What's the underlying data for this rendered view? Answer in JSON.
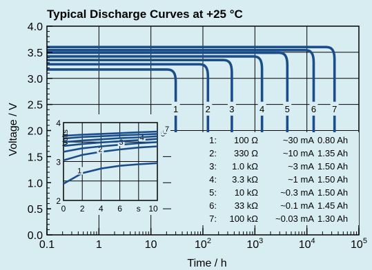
{
  "chart_data": {
    "type": "line",
    "title": "Typical Discharge Curves at +25 °C",
    "xlabel": "Time / h",
    "ylabel": "Voltage / V",
    "x_scale": "log",
    "xlim": [
      0.1,
      100000
    ],
    "ylim": [
      0.0,
      4.0
    ],
    "x_ticks": [
      {
        "v": 0.1,
        "label": "0.1"
      },
      {
        "v": 1,
        "label": "1"
      },
      {
        "v": 10,
        "label": "10"
      },
      {
        "v": 100,
        "label": "10",
        "sup": "2"
      },
      {
        "v": 1000,
        "label": "10",
        "sup": "3"
      },
      {
        "v": 10000,
        "label": "10",
        "sup": "4"
      },
      {
        "v": 100000,
        "label": "10",
        "sup": "5"
      }
    ],
    "y_ticks": [
      "0.0",
      "0.5",
      "1.0",
      "1.5",
      "2.0",
      "2.5",
      "3.0",
      "3.5",
      "4.0"
    ],
    "grid": true,
    "series": [
      {
        "name": "1",
        "plateau": 3.17,
        "end_hours": 30
      },
      {
        "name": "2",
        "plateau": 3.27,
        "end_hours": 125
      },
      {
        "name": "3",
        "plateau": 3.35,
        "end_hours": 360
      },
      {
        "name": "4",
        "plateau": 3.42,
        "end_hours": 1370
      },
      {
        "name": "5",
        "plateau": 3.49,
        "end_hours": 4200
      },
      {
        "name": "6",
        "plateau": 3.54,
        "end_hours": 13500
      },
      {
        "name": "7",
        "plateau": 3.6,
        "end_hours": 34000
      }
    ],
    "legend": [
      {
        "n": "1:",
        "r": "100 Ω",
        "i": "~30 mA",
        "c": "0.80 Ah"
      },
      {
        "n": "2:",
        "r": "330 Ω",
        "i": "~10 mA",
        "c": "1.35 Ah"
      },
      {
        "n": "3:",
        "r": "1.0 kΩ",
        "i": "~3 mA",
        "c": "1.50 Ah"
      },
      {
        "n": "4:",
        "r": "3.3 kΩ",
        "i": "~1 mA",
        "c": "1.50 Ah"
      },
      {
        "n": "5:",
        "r": "10 kΩ",
        "i": "~0.3 mA",
        "c": "1.50 Ah"
      },
      {
        "n": "6:",
        "r": "33 kΩ",
        "i": "~0.1 mA",
        "c": "1.45 Ah"
      },
      {
        "n": "7:",
        "r": "100 kΩ",
        "i": "~0.03 mA",
        "c": "1.30 Ah"
      }
    ],
    "inset": {
      "type": "line",
      "xlabel": "s",
      "ylabel": "Volts",
      "xlim": [
        0,
        10
      ],
      "ylim": [
        2,
        4
      ],
      "x_ticks": [
        "0",
        "2",
        "4",
        "6",
        "10"
      ],
      "y_ticks": [
        "2",
        "3",
        "4"
      ],
      "series": [
        {
          "name": "1",
          "points": [
            [
              0,
              2.43
            ],
            [
              2,
              2.7
            ],
            [
              4,
              2.82
            ],
            [
              6,
              2.89
            ],
            [
              8,
              2.93
            ],
            [
              10,
              2.96
            ]
          ]
        },
        {
          "name": "2",
          "points": [
            [
              0,
              3.03
            ],
            [
              2,
              3.17
            ],
            [
              4,
              3.25
            ],
            [
              6,
              3.31
            ],
            [
              8,
              3.36
            ],
            [
              10,
              3.39
            ]
          ]
        },
        {
          "name": "3",
          "points": [
            [
              0,
              3.25
            ],
            [
              2,
              3.34
            ],
            [
              4,
              3.39
            ],
            [
              6,
              3.43
            ],
            [
              8,
              3.47
            ],
            [
              10,
              3.5
            ]
          ]
        },
        {
          "name": "4",
          "points": [
            [
              0,
              3.4
            ],
            [
              2,
              3.45
            ],
            [
              4,
              3.49
            ],
            [
              6,
              3.52
            ],
            [
              8,
              3.55
            ],
            [
              10,
              3.58
            ]
          ]
        },
        {
          "name": "5",
          "points": [
            [
              0,
              3.5
            ],
            [
              2,
              3.54
            ],
            [
              4,
              3.57
            ],
            [
              6,
              3.6
            ],
            [
              8,
              3.62
            ],
            [
              10,
              3.65
            ]
          ]
        },
        {
          "name": "6",
          "points": [
            [
              0,
              3.59
            ],
            [
              2,
              3.63
            ],
            [
              4,
              3.65
            ],
            [
              6,
              3.67
            ],
            [
              8,
              3.69
            ],
            [
              10,
              3.71
            ]
          ]
        },
        {
          "name": "7",
          "points": [
            [
              0,
              3.66
            ],
            [
              2,
              3.69
            ],
            [
              4,
              3.71
            ],
            [
              6,
              3.73
            ],
            [
              8,
              3.75
            ],
            [
              10,
              3.77
            ]
          ]
        }
      ]
    },
    "colors": {
      "background": "#d8edf2",
      "line": "#1b4d8a",
      "grid": "#000000"
    }
  }
}
